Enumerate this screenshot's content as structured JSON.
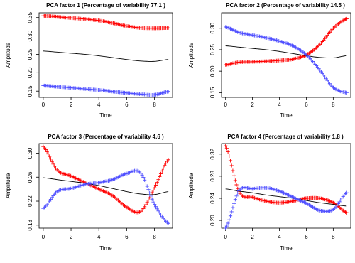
{
  "chart_data": [
    {
      "type": "line",
      "title": "PCA factor 1 (Percentage of variability 77.1 )",
      "xlabel": "Time",
      "ylabel": "Amplitude",
      "xlim": [
        -0.3,
        9.3
      ],
      "ylim": [
        0.133,
        0.363
      ],
      "xticks": [
        0,
        2,
        4,
        6,
        8
      ],
      "yticks": [
        0.15,
        0.2,
        0.25,
        0.3,
        0.35
      ],
      "ytick_labels": [
        "0.15",
        "0.20",
        "0.25",
        "0.30",
        "0.35"
      ],
      "grid": false,
      "series": [
        {
          "color": "#ff0000",
          "marker": "plus",
          "x": [
            0,
            1,
            2,
            3,
            4,
            5,
            6,
            7,
            8,
            9
          ],
          "y": [
            0.355,
            0.352,
            0.349,
            0.346,
            0.342,
            0.335,
            0.327,
            0.322,
            0.321,
            0.322
          ]
        },
        {
          "color": "#000000",
          "marker": "line",
          "x": [
            0,
            1,
            2,
            3,
            4,
            5,
            6,
            7,
            8,
            9
          ],
          "y": [
            0.259,
            0.256,
            0.253,
            0.25,
            0.246,
            0.241,
            0.236,
            0.232,
            0.231,
            0.236
          ]
        },
        {
          "color": "#4d4dff",
          "marker": "plus",
          "x": [
            0,
            1,
            2,
            3,
            4,
            5,
            6,
            7,
            8,
            9
          ],
          "y": [
            0.165,
            0.162,
            0.159,
            0.156,
            0.153,
            0.149,
            0.145,
            0.142,
            0.14,
            0.149
          ]
        }
      ]
    },
    {
      "type": "line",
      "title": "PCA factor 2 (Percentage of variability 14.5 )",
      "xlabel": "Time",
      "ylabel": "Amplitude",
      "xlim": [
        -0.3,
        9.3
      ],
      "ylim": [
        0.139,
        0.336
      ],
      "xticks": [
        0,
        2,
        4,
        6,
        8
      ],
      "yticks": [
        0.15,
        0.2,
        0.25,
        0.3
      ],
      "ytick_labels": [
        "0.15",
        "0.20",
        "0.25",
        "0.30"
      ],
      "grid": false,
      "series": [
        {
          "color": "#ff0000",
          "marker": "plus",
          "x": [
            0,
            1,
            2,
            3,
            4,
            5,
            6,
            7,
            8,
            9
          ],
          "y": [
            0.215,
            0.221,
            0.222,
            0.223,
            0.225,
            0.228,
            0.238,
            0.262,
            0.3,
            0.322
          ]
        },
        {
          "color": "#000000",
          "marker": "line",
          "x": [
            0,
            1,
            2,
            3,
            4,
            5,
            6,
            7,
            8,
            9
          ],
          "y": [
            0.259,
            0.256,
            0.253,
            0.25,
            0.246,
            0.241,
            0.236,
            0.232,
            0.231,
            0.236
          ]
        },
        {
          "color": "#4d4dff",
          "marker": "plus",
          "x": [
            0,
            1,
            2,
            3,
            4,
            5,
            6,
            7,
            8,
            9
          ],
          "y": [
            0.303,
            0.29,
            0.284,
            0.278,
            0.27,
            0.259,
            0.238,
            0.203,
            0.162,
            0.15
          ]
        }
      ]
    },
    {
      "type": "line",
      "title": "PCA factor 3 (Percentage of variability 4.6 )",
      "xlabel": "Time",
      "ylabel": "Amplitude",
      "xlim": [
        -0.3,
        9.3
      ],
      "ylim": [
        0.175,
        0.316
      ],
      "xticks": [
        0,
        2,
        4,
        6,
        8
      ],
      "yticks": [
        0.18,
        0.22,
        0.26,
        0.3
      ],
      "ytick_labels": [
        "0.18",
        "0.22",
        "0.26",
        "0.30"
      ],
      "grid": false,
      "series": [
        {
          "color": "#ff0000",
          "marker": "plus",
          "x": [
            0,
            1,
            2,
            3,
            4,
            5,
            6,
            7,
            8,
            9
          ],
          "y": [
            0.311,
            0.272,
            0.262,
            0.251,
            0.24,
            0.229,
            0.21,
            0.203,
            0.242,
            0.289
          ]
        },
        {
          "color": "#000000",
          "marker": "line",
          "x": [
            0,
            1,
            2,
            3,
            4,
            5,
            6,
            7,
            8,
            9
          ],
          "y": [
            0.259,
            0.256,
            0.253,
            0.25,
            0.246,
            0.241,
            0.236,
            0.232,
            0.231,
            0.236
          ]
        },
        {
          "color": "#4d4dff",
          "marker": "plus",
          "x": [
            0,
            1,
            2,
            3,
            4,
            5,
            6,
            7,
            8,
            9
          ],
          "y": [
            0.208,
            0.236,
            0.241,
            0.248,
            0.251,
            0.256,
            0.266,
            0.267,
            0.215,
            0.183
          ]
        }
      ]
    },
    {
      "type": "line",
      "title": "PCA factor 4 (Percentage of variability 1.8 )",
      "xlabel": "Time",
      "ylabel": "Amplitude",
      "xlim": [
        -0.3,
        9.3
      ],
      "ylim": [
        0.186,
        0.339
      ],
      "xticks": [
        0,
        2,
        4,
        6,
        8
      ],
      "yticks": [
        0.2,
        0.24,
        0.28,
        0.32
      ],
      "ytick_labels": [
        "0.20",
        "0.24",
        "0.28",
        "0.32"
      ],
      "grid": false,
      "series": [
        {
          "color": "#ff0000",
          "marker": "plus",
          "x": [
            0,
            1,
            2,
            3,
            4,
            5,
            6,
            7,
            8,
            9
          ],
          "y": [
            0.335,
            0.252,
            0.242,
            0.235,
            0.232,
            0.235,
            0.24,
            0.24,
            0.232,
            0.214
          ]
        },
        {
          "color": "#000000",
          "marker": "line",
          "x": [
            0,
            1,
            2,
            3,
            4,
            5,
            6,
            7,
            8,
            9
          ],
          "y": [
            0.257,
            0.253,
            0.25,
            0.246,
            0.243,
            0.24,
            0.236,
            0.232,
            0.229,
            0.226
          ]
        },
        {
          "color": "#4d4dff",
          "marker": "plus",
          "x": [
            0,
            1,
            2,
            3,
            4,
            5,
            6,
            7,
            8,
            9
          ],
          "y": [
            0.186,
            0.254,
            0.257,
            0.259,
            0.253,
            0.242,
            0.231,
            0.218,
            0.22,
            0.25
          ]
        }
      ]
    }
  ]
}
